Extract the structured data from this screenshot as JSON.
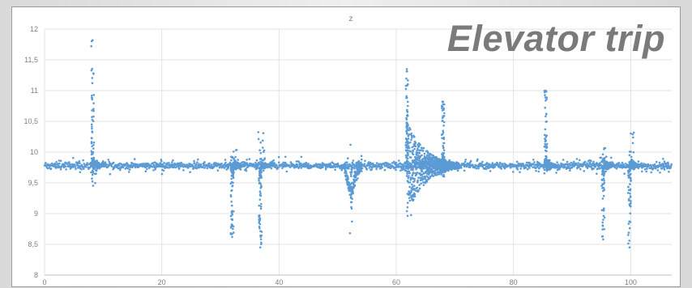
{
  "overlay": {
    "title": "Elevator trip"
  },
  "chart_data": {
    "type": "scatter",
    "title": "z",
    "xlabel": "",
    "ylabel": "",
    "xlim": [
      0,
      107
    ],
    "ylim": [
      8,
      12
    ],
    "x_ticks": [
      "0",
      "20",
      "40",
      "60",
      "80",
      "100"
    ],
    "y_ticks": [
      "8",
      "8,5",
      "9",
      "9,5",
      "10",
      "10,5",
      "11",
      "11,5",
      "12"
    ],
    "grid": true,
    "legend": "none",
    "series": [
      {
        "color": "#5b9bd5",
        "baseline": 9.78,
        "events": [
          {
            "x": 8.2,
            "min": 9.42,
            "max": 11.82,
            "kind": "spike-up"
          },
          {
            "x": 32.0,
            "min": 8.62,
            "max": 10.05,
            "kind": "spike-down"
          },
          {
            "x": 36.8,
            "min": 8.45,
            "max": 10.35,
            "kind": "spike-down"
          },
          {
            "x": 52.3,
            "min": 8.68,
            "max": 10.12,
            "kind": "dip"
          },
          {
            "x": 61.8,
            "min": 8.95,
            "max": 11.35,
            "kind": "oscillation"
          },
          {
            "x": 68.0,
            "min": 9.6,
            "max": 10.82,
            "kind": "spike-up"
          },
          {
            "x": 85.5,
            "min": 9.7,
            "max": 11.0,
            "kind": "spike-up"
          },
          {
            "x": 95.3,
            "min": 8.58,
            "max": 10.1,
            "kind": "spike-down"
          },
          {
            "x": 99.8,
            "min": 8.45,
            "max": 10.4,
            "kind": "spike-down"
          }
        ]
      }
    ]
  }
}
